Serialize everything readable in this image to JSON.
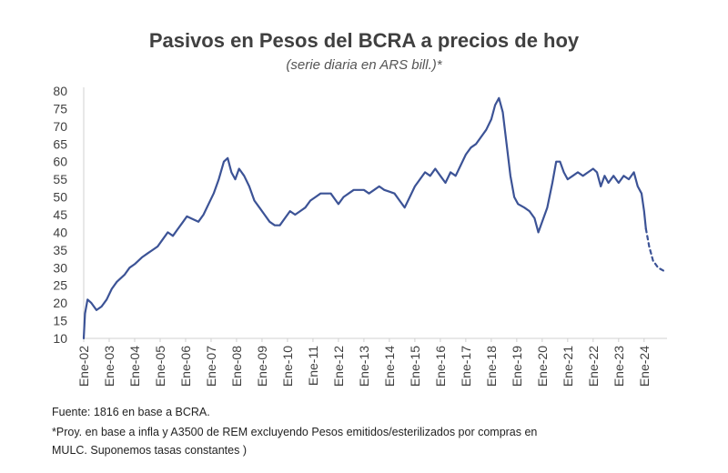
{
  "chart_data": {
    "type": "line",
    "title": "Pasivos en Pesos del BCRA a precios de hoy",
    "subtitle": "(serie diaria en ARS bill.)*",
    "xlabel": "",
    "ylabel": "",
    "ylim": [
      10,
      80
    ],
    "yticks": [
      10,
      15,
      20,
      25,
      30,
      35,
      40,
      45,
      50,
      55,
      60,
      65,
      70,
      75,
      80
    ],
    "xlim": [
      2002,
      2024.9
    ],
    "grid": false,
    "legend": "none",
    "color": "#3c5396",
    "x_tick_labels": [
      "Ene-02",
      "Ene-03",
      "Ene-04",
      "Ene-05",
      "Ene-06",
      "Ene-07",
      "Ene-08",
      "Ene-09",
      "Ene-10",
      "Ene-11",
      "Ene-12",
      "Ene-13",
      "Ene-14",
      "Ene-15",
      "Ene-16",
      "Ene-17",
      "Ene-18",
      "Ene-19",
      "Ene-20",
      "Ene-21",
      "Ene-22",
      "Ene-23",
      "Ene-24"
    ],
    "x_tick_values": [
      2002,
      2003,
      2004,
      2005,
      2006,
      2007,
      2008,
      2009,
      2010,
      2011,
      2012,
      2013,
      2014,
      2015,
      2016,
      2017,
      2018,
      2019,
      2020,
      2021,
      2022,
      2023,
      2024
    ],
    "series": [
      {
        "name": "Pasivos en Pesos del BCRA",
        "style": "solid",
        "points": [
          [
            2002.0,
            10
          ],
          [
            2002.05,
            17
          ],
          [
            2002.15,
            21
          ],
          [
            2002.3,
            20
          ],
          [
            2002.5,
            18
          ],
          [
            2002.7,
            19
          ],
          [
            2002.9,
            21
          ],
          [
            2003.1,
            24
          ],
          [
            2003.3,
            26
          ],
          [
            2003.6,
            28
          ],
          [
            2003.8,
            30
          ],
          [
            2004.0,
            31
          ],
          [
            2004.3,
            33
          ],
          [
            2004.5,
            34
          ],
          [
            2004.7,
            35
          ],
          [
            2004.9,
            36
          ],
          [
            2005.1,
            38
          ],
          [
            2005.3,
            40
          ],
          [
            2005.5,
            39
          ],
          [
            2005.7,
            41
          ],
          [
            2005.9,
            43
          ],
          [
            2006.05,
            44.5
          ],
          [
            2006.2,
            44
          ],
          [
            2006.5,
            43
          ],
          [
            2006.7,
            45
          ],
          [
            2006.9,
            48
          ],
          [
            2007.1,
            51
          ],
          [
            2007.3,
            55
          ],
          [
            2007.5,
            60
          ],
          [
            2007.65,
            61
          ],
          [
            2007.8,
            57
          ],
          [
            2007.95,
            55
          ],
          [
            2008.1,
            58
          ],
          [
            2008.3,
            56
          ],
          [
            2008.5,
            53
          ],
          [
            2008.7,
            49
          ],
          [
            2008.9,
            47
          ],
          [
            2009.1,
            45
          ],
          [
            2009.3,
            43
          ],
          [
            2009.5,
            42
          ],
          [
            2009.7,
            42
          ],
          [
            2009.9,
            44
          ],
          [
            2010.1,
            46
          ],
          [
            2010.3,
            45
          ],
          [
            2010.5,
            46
          ],
          [
            2010.7,
            47
          ],
          [
            2010.9,
            49
          ],
          [
            2011.1,
            50
          ],
          [
            2011.3,
            51
          ],
          [
            2011.5,
            51
          ],
          [
            2011.7,
            51
          ],
          [
            2011.9,
            49
          ],
          [
            2012.0,
            48
          ],
          [
            2012.2,
            50
          ],
          [
            2012.4,
            51
          ],
          [
            2012.6,
            52
          ],
          [
            2012.8,
            52
          ],
          [
            2013.0,
            52
          ],
          [
            2013.2,
            51
          ],
          [
            2013.4,
            52
          ],
          [
            2013.6,
            53
          ],
          [
            2013.8,
            52
          ],
          [
            2014.0,
            51.5
          ],
          [
            2014.2,
            51
          ],
          [
            2014.4,
            49
          ],
          [
            2014.6,
            47
          ],
          [
            2014.8,
            50
          ],
          [
            2015.0,
            53
          ],
          [
            2015.2,
            55
          ],
          [
            2015.4,
            57
          ],
          [
            2015.6,
            56
          ],
          [
            2015.8,
            58
          ],
          [
            2016.0,
            56
          ],
          [
            2016.2,
            54
          ],
          [
            2016.4,
            57
          ],
          [
            2016.6,
            56
          ],
          [
            2016.8,
            59
          ],
          [
            2017.0,
            62
          ],
          [
            2017.2,
            64
          ],
          [
            2017.4,
            65
          ],
          [
            2017.6,
            67
          ],
          [
            2017.8,
            69
          ],
          [
            2018.0,
            72
          ],
          [
            2018.15,
            76
          ],
          [
            2018.3,
            78
          ],
          [
            2018.45,
            74
          ],
          [
            2018.6,
            65
          ],
          [
            2018.75,
            56
          ],
          [
            2018.9,
            50
          ],
          [
            2019.05,
            48
          ],
          [
            2019.3,
            47
          ],
          [
            2019.5,
            46
          ],
          [
            2019.7,
            44
          ],
          [
            2019.85,
            40
          ],
          [
            2020.0,
            43
          ],
          [
            2020.2,
            47
          ],
          [
            2020.4,
            54
          ],
          [
            2020.55,
            60
          ],
          [
            2020.7,
            60
          ],
          [
            2020.85,
            57
          ],
          [
            2021.0,
            55
          ],
          [
            2021.2,
            56
          ],
          [
            2021.4,
            57
          ],
          [
            2021.6,
            56
          ],
          [
            2021.8,
            57
          ],
          [
            2022.0,
            58
          ],
          [
            2022.15,
            57
          ],
          [
            2022.3,
            53
          ],
          [
            2022.45,
            56
          ],
          [
            2022.6,
            54
          ],
          [
            2022.8,
            56
          ],
          [
            2023.0,
            54
          ],
          [
            2023.2,
            56
          ],
          [
            2023.4,
            55
          ],
          [
            2023.6,
            57
          ],
          [
            2023.75,
            53
          ],
          [
            2023.9,
            51
          ],
          [
            2024.0,
            46
          ],
          [
            2024.07,
            41
          ]
        ]
      },
      {
        "name": "Proyección",
        "style": "dashed",
        "points": [
          [
            2024.07,
            41
          ],
          [
            2024.2,
            36
          ],
          [
            2024.35,
            32
          ],
          [
            2024.55,
            30
          ],
          [
            2024.8,
            29
          ]
        ]
      }
    ]
  },
  "notes": {
    "source": "Fuente: 1816 en base a BCRA.",
    "projection_line1": "*Proy. en base a infla y A3500 de REM excluyendo Pesos emitidos/esterilizados por compras en",
    "projection_line2": "MULC. Suponemos tasas constantes )"
  }
}
